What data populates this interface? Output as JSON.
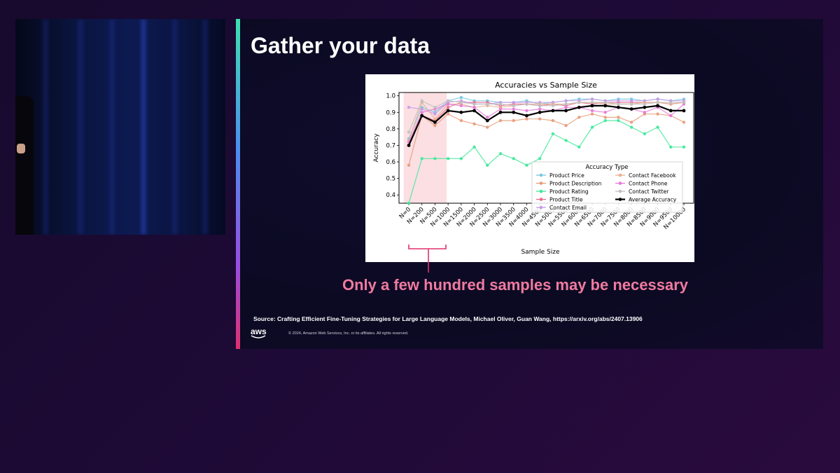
{
  "slide": {
    "title": "Gather your data",
    "note": "Only a few hundred samples may be necessary",
    "source": "Source: Crafting Efficient Fine-Tuning Strategies for Large Language Models, Michael Oliver, Guan Wang, https://arxiv.org/abs/2407.13906",
    "copyright": "© 2024, Amazon Web Services, Inc. or its affiliates. All rights reserved.",
    "logo_text": "aws",
    "accent_color": "#f07aa0"
  },
  "chart_data": {
    "type": "line",
    "title": "Accuracies vs Sample Size",
    "xlabel": "Sample Size",
    "ylabel": "Accuracy",
    "ylim": [
      0.35,
      1.02
    ],
    "yticks": [
      "0.4",
      "0.5",
      "0.6",
      "0.7",
      "0.8",
      "0.9",
      "1.0"
    ],
    "grid": false,
    "legend_title": "Accuracy Type",
    "legend_position": "lower-right",
    "highlight_range": [
      "N=0",
      "N=1000"
    ],
    "categories": [
      "N=0",
      "N=200",
      "N=500",
      "N=1000",
      "N=1500",
      "N=2000",
      "N=2500",
      "N=3000",
      "N=3500",
      "N=4000",
      "N=4500",
      "N=5000",
      "N=5500",
      "N=6000",
      "N=6500",
      "N=7000",
      "N=7500",
      "N=8000",
      "N=8500",
      "N=9000",
      "N=9500",
      "N=10000"
    ],
    "series": [
      {
        "name": "Product Price",
        "color": "#76c8e0",
        "values": [
          0.74,
          0.93,
          0.9,
          0.97,
          0.99,
          0.97,
          0.97,
          0.96,
          0.96,
          0.97,
          0.95,
          0.96,
          0.97,
          0.98,
          0.98,
          0.97,
          0.98,
          0.98,
          0.97,
          0.98,
          0.97,
          0.98
        ]
      },
      {
        "name": "Product Description",
        "color": "#e89a78",
        "values": [
          0.58,
          0.88,
          0.82,
          0.89,
          0.85,
          0.83,
          0.81,
          0.85,
          0.85,
          0.86,
          0.86,
          0.85,
          0.82,
          0.87,
          0.89,
          0.87,
          0.87,
          0.84,
          0.89,
          0.89,
          0.88,
          0.84
        ]
      },
      {
        "name": "Product Rating",
        "color": "#3ee89a",
        "values": [
          0.35,
          0.62,
          0.62,
          0.62,
          0.62,
          0.69,
          0.58,
          0.65,
          0.62,
          0.58,
          0.62,
          0.77,
          0.73,
          0.69,
          0.81,
          0.85,
          0.85,
          0.81,
          0.77,
          0.81,
          0.69,
          0.69
        ]
      },
      {
        "name": "Product Title",
        "color": "#e86a8c",
        "values": [
          0.7,
          0.88,
          0.85,
          0.93,
          0.96,
          0.96,
          0.96,
          0.94,
          0.95,
          0.95,
          0.94,
          0.95,
          0.94,
          0.96,
          0.95,
          0.96,
          0.96,
          0.96,
          0.96,
          0.96,
          0.95,
          0.96
        ]
      },
      {
        "name": "Contact Email",
        "color": "#c89ae8",
        "values": [
          0.93,
          0.92,
          0.89,
          0.96,
          0.97,
          0.95,
          0.95,
          0.96,
          0.96,
          0.96,
          0.96,
          0.96,
          0.97,
          0.97,
          0.98,
          0.97,
          0.97,
          0.97,
          0.97,
          0.98,
          0.97,
          0.97
        ]
      },
      {
        "name": "Contact Facebook",
        "color": "#e8b090",
        "values": [
          0.73,
          0.96,
          0.86,
          0.95,
          0.95,
          0.93,
          0.94,
          0.93,
          0.94,
          0.95,
          0.95,
          0.95,
          0.95,
          0.96,
          0.96,
          0.95,
          0.95,
          0.95,
          0.96,
          0.96,
          0.95,
          0.96
        ]
      },
      {
        "name": "Contact Phone",
        "color": "#e678d8",
        "values": [
          0.72,
          0.9,
          0.92,
          0.95,
          0.94,
          0.93,
          0.87,
          0.92,
          0.92,
          0.91,
          0.92,
          0.91,
          0.93,
          0.93,
          0.91,
          0.9,
          0.93,
          0.92,
          0.9,
          0.93,
          0.88,
          0.95
        ]
      },
      {
        "name": "Contact Twitter",
        "color": "#c0c0c0",
        "values": [
          0.78,
          0.97,
          0.93,
          0.97,
          0.96,
          0.95,
          0.95,
          0.95,
          0.94,
          0.95,
          0.94,
          0.94,
          0.95,
          0.96,
          0.96,
          0.96,
          0.95,
          0.95,
          0.95,
          0.96,
          0.96,
          0.96
        ]
      },
      {
        "name": "Average Accuracy",
        "color": "#000000",
        "values": [
          0.7,
          0.88,
          0.84,
          0.91,
          0.9,
          0.91,
          0.85,
          0.9,
          0.9,
          0.88,
          0.9,
          0.91,
          0.91,
          0.93,
          0.94,
          0.94,
          0.93,
          0.92,
          0.93,
          0.94,
          0.91,
          0.91
        ]
      }
    ]
  }
}
